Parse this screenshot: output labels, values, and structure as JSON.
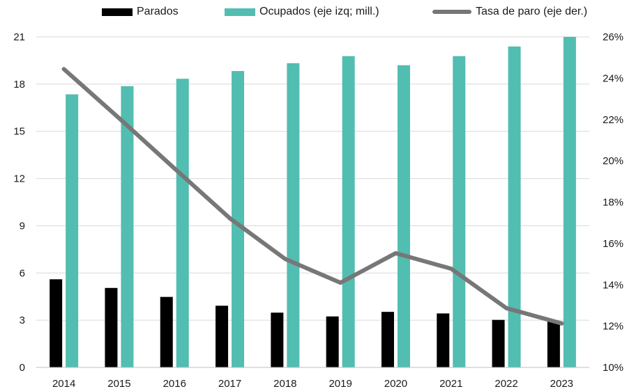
{
  "chart_data": {
    "type": "bar",
    "categories": [
      "2014",
      "2015",
      "2016",
      "2017",
      "2018",
      "2019",
      "2020",
      "2021",
      "2022",
      "2023"
    ],
    "series": [
      {
        "name": "Parados",
        "kind": "bar",
        "axis": "left",
        "color": "#000000",
        "values": [
          5.6,
          5.05,
          4.48,
          3.92,
          3.48,
          3.24,
          3.53,
          3.43,
          3.02,
          2.92
        ]
      },
      {
        "name": "Ocupados (eje izq; mill.)",
        "kind": "bar",
        "axis": "left",
        "color": "#52bdb1",
        "values": [
          17.35,
          17.87,
          18.34,
          18.83,
          19.33,
          19.78,
          19.2,
          19.78,
          20.39,
          21.0
        ]
      },
      {
        "name": "Tasa de paro (eje der.)",
        "kind": "line",
        "axis": "right",
        "color": "#777777",
        "values": [
          24.44,
          22.06,
          19.63,
          17.22,
          15.25,
          14.1,
          15.53,
          14.78,
          12.87,
          12.13
        ]
      }
    ],
    "y_left": {
      "min": 0,
      "max": 21,
      "ticks": [
        "0",
        "3",
        "6",
        "9",
        "12",
        "15",
        "18",
        "21"
      ]
    },
    "y_right": {
      "min": 10,
      "max": 26,
      "ticks": [
        "10%",
        "12%",
        "14%",
        "16%",
        "18%",
        "20%",
        "22%",
        "24%",
        "26%"
      ]
    },
    "grid": true,
    "legend_position": "top"
  },
  "legend": {
    "parados": "Parados",
    "ocupados": "Ocupados (eje izq; mill.)",
    "tasa": "Tasa de paro (eje der.)"
  }
}
